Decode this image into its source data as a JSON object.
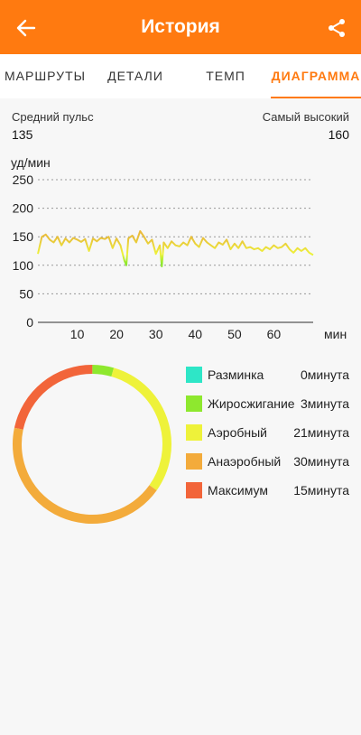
{
  "header": {
    "title": "История",
    "back_icon": "arrow-left-icon",
    "share_icon": "share-icon",
    "color": "#ff7a10"
  },
  "tabs": [
    {
      "label": "МАРШРУТЫ",
      "active": false
    },
    {
      "label": "ДЕТАЛИ",
      "active": false
    },
    {
      "label": "ТЕМП",
      "active": false
    },
    {
      "label": "ДИАГРАММА",
      "active": true
    }
  ],
  "stats": {
    "avg_label": "Средний пульс",
    "avg_value": "135",
    "max_label": "Самый высокий",
    "max_value": "160"
  },
  "chart_data": {
    "type": "line",
    "ylabel": "уд/мин",
    "xlabel": "мин",
    "ylim": [
      0,
      250
    ],
    "xlim": [
      0,
      70
    ],
    "y_ticks": [
      "0",
      "50",
      "100",
      "150",
      "200",
      "250"
    ],
    "x_ticks": [
      "10",
      "20",
      "30",
      "40",
      "50",
      "60"
    ],
    "grid": "horizontal dotted",
    "series": [
      {
        "x": [
          0,
          1,
          2,
          3,
          4,
          5,
          6,
          7,
          8,
          9,
          10,
          11,
          12,
          13,
          14,
          15,
          16,
          17,
          18,
          19,
          20,
          21,
          22,
          22.5,
          23,
          24,
          25,
          26,
          27,
          28,
          29,
          30,
          31,
          31.5,
          32,
          33,
          34,
          35,
          36,
          37,
          38,
          39,
          40,
          41,
          42,
          43,
          44,
          45,
          46,
          47,
          48,
          49,
          50,
          51,
          52,
          53,
          54,
          55,
          56,
          57,
          58,
          59,
          60,
          61,
          62,
          63,
          64,
          65,
          66,
          67,
          68,
          69,
          70
        ],
        "y": [
          120,
          150,
          154,
          145,
          140,
          150,
          135,
          147,
          140,
          148,
          145,
          141,
          146,
          125,
          147,
          142,
          148,
          146,
          150,
          130,
          147,
          135,
          108,
          100,
          147,
          152,
          140,
          160,
          150,
          138,
          145,
          120,
          135,
          98,
          140,
          130,
          142,
          135,
          133,
          140,
          135,
          150,
          138,
          132,
          148,
          140,
          135,
          130,
          140,
          136,
          145,
          128,
          138,
          130,
          142,
          130,
          132,
          128,
          130,
          125,
          132,
          128,
          135,
          130,
          132,
          138,
          128,
          122,
          130,
          125,
          130,
          122,
          118
        ]
      }
    ]
  },
  "zones": [
    {
      "name": "Разминка",
      "value": "0минута",
      "minutes": 0,
      "color": "#2ee6c7"
    },
    {
      "name": "Жиросжигание",
      "value": "3минута",
      "minutes": 3,
      "color": "#8ee82e"
    },
    {
      "name": "Аэробный",
      "value": "21минута",
      "minutes": 21,
      "color": "#eef23a"
    },
    {
      "name": "Анаэробный",
      "value": "30минута",
      "minutes": 30,
      "color": "#f3ab3b"
    },
    {
      "name": "Максимум",
      "value": "15минута",
      "minutes": 15,
      "color": "#f2653a"
    }
  ]
}
